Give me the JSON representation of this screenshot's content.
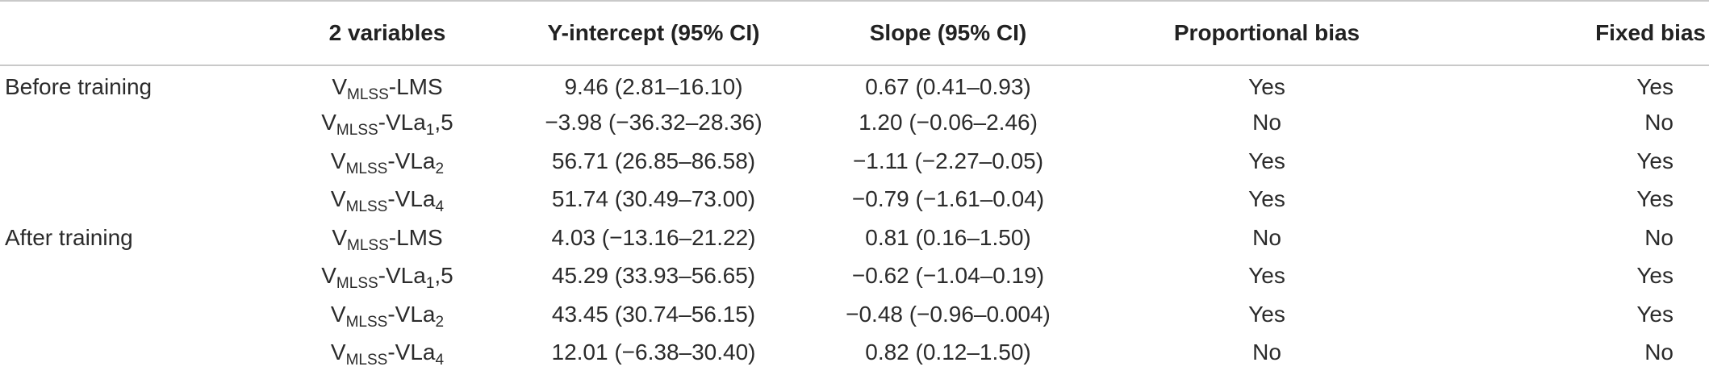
{
  "table": {
    "headers": [
      "",
      "2 variables",
      "Y-intercept (95% CI)",
      "Slope (95% CI)",
      "Proportional bias",
      "Fixed bias"
    ],
    "rows": [
      {
        "group": "Before training",
        "var_base": "V",
        "var_sub": "MLSS",
        "var_rest": "-LMS",
        "var_rest_sub": "",
        "var_rest_tail": "",
        "intercept": "9.46 (2.81–16.10)",
        "slope": "0.67 (0.41–0.93)",
        "proportional": "Yes",
        "fixed": "Yes"
      },
      {
        "group": "",
        "var_base": "V",
        "var_sub": "MLSS",
        "var_rest": "-VLa",
        "var_rest_sub": "1",
        "var_rest_tail": ",5",
        "intercept": "−3.98 (−36.32–28.36)",
        "slope": "1.20 (−0.06–2.46)",
        "proportional": "No",
        "fixed": "No"
      },
      {
        "group": "",
        "var_base": "V",
        "var_sub": "MLSS",
        "var_rest": "-VLa",
        "var_rest_sub": "2",
        "var_rest_tail": "",
        "intercept": "56.71 (26.85–86.58)",
        "slope": "−1.11 (−2.27–0.05)",
        "proportional": "Yes",
        "fixed": "Yes"
      },
      {
        "group": "",
        "var_base": "V",
        "var_sub": "MLSS",
        "var_rest": "-VLa",
        "var_rest_sub": "4",
        "var_rest_tail": "",
        "intercept": "51.74 (30.49–73.00)",
        "slope": "−0.79 (−1.61–0.04)",
        "proportional": "Yes",
        "fixed": "Yes"
      },
      {
        "group": "After training",
        "var_base": "V",
        "var_sub": "MLSS",
        "var_rest": "-LMS",
        "var_rest_sub": "",
        "var_rest_tail": "",
        "intercept": "4.03 (−13.16–21.22)",
        "slope": "0.81 (0.16–1.50)",
        "proportional": "No",
        "fixed": "No"
      },
      {
        "group": "",
        "var_base": "V",
        "var_sub": "MLSS",
        "var_rest": "-VLa",
        "var_rest_sub": "1",
        "var_rest_tail": ",5",
        "intercept": "45.29 (33.93–56.65)",
        "slope": "−0.62 (−1.04–0.19)",
        "proportional": "Yes",
        "fixed": "Yes"
      },
      {
        "group": "",
        "var_base": "V",
        "var_sub": "MLSS",
        "var_rest": "-VLa",
        "var_rest_sub": "2",
        "var_rest_tail": "",
        "intercept": "43.45 (30.74–56.15)",
        "slope": "−0.48 (−0.96–0.004)",
        "proportional": "Yes",
        "fixed": "Yes"
      },
      {
        "group": "",
        "var_base": "V",
        "var_sub": "MLSS",
        "var_rest": "-VLa",
        "var_rest_sub": "4",
        "var_rest_tail": "",
        "intercept": "12.01 (−6.38–30.40)",
        "slope": "0.82 (0.12–1.50)",
        "proportional": "No",
        "fixed": "No"
      }
    ]
  },
  "colors": {
    "text": "#2b2b2b",
    "rule": "#c9c9c9"
  }
}
